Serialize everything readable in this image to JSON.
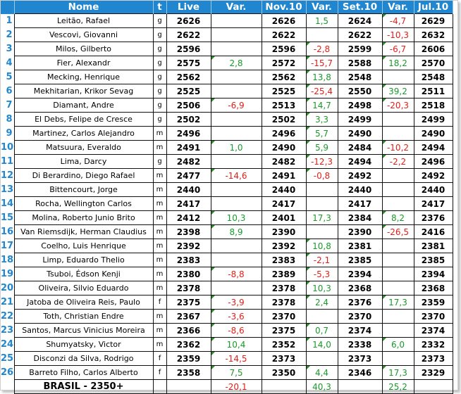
{
  "headers": [
    "",
    "Nome",
    "t",
    "Live",
    "Var.",
    "Nov.10",
    "Var.",
    "Set.10",
    "Var.",
    "Jul.10"
  ],
  "rows": [
    {
      "rank": "1",
      "name": "Leitão, Rafael",
      "t": "g",
      "live": "2626",
      "var1": "",
      "nov": "2626",
      "var2": "1,5",
      "set": "2624",
      "var3": "-4,7",
      "jul": "2629"
    },
    {
      "rank": "2",
      "name": "Vescovi, Giovanni",
      "t": "g",
      "live": "2622",
      "var1": "",
      "nov": "2622",
      "var2": "",
      "set": "2622",
      "var3": "-10,3",
      "jul": "2632"
    },
    {
      "rank": "3",
      "name": "Milos, Gilberto",
      "t": "g",
      "live": "2596",
      "var1": "",
      "nov": "2596",
      "var2": "-2,8",
      "set": "2599",
      "var3": "-6,7",
      "jul": "2606"
    },
    {
      "rank": "4",
      "name": "Fier, Alexandr",
      "t": "g",
      "live": "2575",
      "var1": "2,8",
      "nov": "2572",
      "var2": "-15,7",
      "set": "2588",
      "var3": "18,2",
      "jul": "2570"
    },
    {
      "rank": "5",
      "name": "Mecking, Henrique",
      "t": "g",
      "live": "2562",
      "var1": "",
      "nov": "2562",
      "var2": "13,8",
      "set": "2548",
      "var3": "",
      "jul": "2548"
    },
    {
      "rank": "6",
      "name": "Mekhitarian, Krikor Sevag",
      "t": "g",
      "live": "2525",
      "var1": "",
      "nov": "2525",
      "var2": "-25,4",
      "set": "2550",
      "var3": "39,2",
      "jul": "2511"
    },
    {
      "rank": "7",
      "name": "Diamant, Andre",
      "t": "g",
      "live": "2506",
      "var1": "-6,9",
      "nov": "2513",
      "var2": "14,7",
      "set": "2498",
      "var3": "-20,3",
      "jul": "2518"
    },
    {
      "rank": "8",
      "name": "El Debs, Felipe de Cresce",
      "t": "g",
      "live": "2502",
      "var1": "",
      "nov": "2502",
      "var2": "3,3",
      "set": "2499",
      "var3": "",
      "jul": "2499"
    },
    {
      "rank": "9",
      "name": "Martinez, Carlos Alejandro",
      "t": "m",
      "live": "2496",
      "var1": "",
      "nov": "2496",
      "var2": "5,7",
      "set": "2490",
      "var3": "",
      "jul": "2490"
    },
    {
      "rank": "10",
      "name": "Matsuura, Everaldo",
      "t": "m",
      "live": "2491",
      "var1": "1,0",
      "nov": "2490",
      "var2": "5,9",
      "set": "2484",
      "var3": "-10,2",
      "jul": "2494"
    },
    {
      "rank": "11",
      "name": "Lima, Darcy",
      "t": "g",
      "live": "2482",
      "var1": "",
      "nov": "2482",
      "var2": "-12,3",
      "set": "2494",
      "var3": "-2,2",
      "jul": "2496"
    },
    {
      "rank": "12",
      "name": "Di Berardino, Diego Rafael",
      "t": "m",
      "live": "2477",
      "var1": "-14,6",
      "nov": "2491",
      "var2": "-0,8",
      "set": "2492",
      "var3": "",
      "jul": "2492"
    },
    {
      "rank": "13",
      "name": "Bittencourt, Jorge",
      "t": "m",
      "live": "2440",
      "var1": "",
      "nov": "2440",
      "var2": "",
      "set": "2440",
      "var3": "",
      "jul": "2440"
    },
    {
      "rank": "14",
      "name": "Rocha, Wellington Carlos",
      "t": "m",
      "live": "2417",
      "var1": "",
      "nov": "2417",
      "var2": "",
      "set": "2417",
      "var3": "",
      "jul": "2417"
    },
    {
      "rank": "15",
      "name": "Molina, Roberto Junio Brito",
      "t": "m",
      "live": "2412",
      "var1": "10,3",
      "nov": "2401",
      "var2": "17,3",
      "set": "2384",
      "var3": "8,2",
      "jul": "2376"
    },
    {
      "rank": "16",
      "name": "Van Riemsdijk, Herman Claudius",
      "t": "m",
      "live": "2398",
      "var1": "8,9",
      "nov": "2390",
      "var2": "",
      "set": "2390",
      "var3": "-26,5",
      "jul": "2416"
    },
    {
      "rank": "17",
      "name": "Coelho, Luis Henrique",
      "t": "m",
      "live": "2392",
      "var1": "",
      "nov": "2392",
      "var2": "10,8",
      "set": "2381",
      "var3": "",
      "jul": "2381"
    },
    {
      "rank": "18",
      "name": "Limp, Eduardo Thelio",
      "t": "m",
      "live": "2383",
      "var1": "",
      "nov": "2383",
      "var2": "-2,1",
      "set": "2385",
      "var3": "",
      "jul": "2385"
    },
    {
      "rank": "19",
      "name": "Tsuboi, Édson Kenji",
      "t": "m",
      "live": "2380",
      "var1": "-8,8",
      "nov": "2389",
      "var2": "-5,3",
      "set": "2394",
      "var3": "",
      "jul": "2394"
    },
    {
      "rank": "20",
      "name": "Oliveira, Silvio Eduardo",
      "t": "m",
      "live": "2378",
      "var1": "",
      "nov": "2378",
      "var2": "10,3",
      "set": "2368",
      "var3": "",
      "jul": "2368"
    },
    {
      "rank": "21",
      "name": "Jatoba de Oliveira Reis, Paulo",
      "t": "f",
      "live": "2375",
      "var1": "-3,9",
      "nov": "2378",
      "var2": "2,4",
      "set": "2376",
      "var3": "17,3",
      "jul": "2359"
    },
    {
      "rank": "22",
      "name": "Toth, Christian Endre",
      "t": "m",
      "live": "2367",
      "var1": "-3,6",
      "nov": "2370",
      "var2": "",
      "set": "2370",
      "var3": "",
      "jul": "2370"
    },
    {
      "rank": "23",
      "name": "Santos, Marcus Vinicius Moreira",
      "t": "m",
      "live": "2366",
      "var1": "-8,6",
      "nov": "2375",
      "var2": "0,7",
      "set": "2374",
      "var3": "",
      "jul": "2374"
    },
    {
      "rank": "24",
      "name": "Shumyatsky, Victor",
      "t": "m",
      "live": "2362",
      "var1": "10,4",
      "nov": "2352",
      "var2": "14,0",
      "set": "2338",
      "var3": "6,0",
      "jul": "2332"
    },
    {
      "rank": "25",
      "name": "Disconzi da Silva, Rodrigo",
      "t": "f",
      "live": "2359",
      "var1": "-14,5",
      "nov": "2373",
      "var2": "",
      "set": "2373",
      "var3": "",
      "jul": "2373"
    },
    {
      "rank": "26",
      "name": "Barreto Filho, Carlos Alberto",
      "t": "f",
      "live": "2358",
      "var1": "7,5",
      "nov": "2350",
      "var2": "4,4",
      "set": "2346",
      "var3": "17,3",
      "jul": "2329"
    }
  ],
  "footer": {
    "label": "BRASIL - 2350+",
    "var1": "-20,1",
    "var2": "40,3",
    "var3": "25,2"
  },
  "colors": {
    "header_bg": "#1f86cf",
    "rank": "#1f86cf",
    "positive": "#1a9a2a",
    "negative": "#e0201a",
    "comment_marker": "#2a8a2a"
  }
}
